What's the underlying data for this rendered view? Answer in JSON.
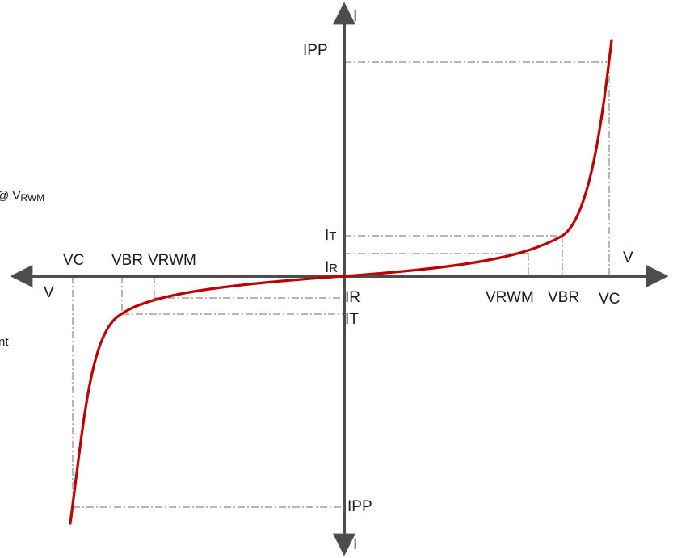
{
  "colors": {
    "curve": "#c00000",
    "axis": "#4d4d4d",
    "guide": "#6e6e6e",
    "text": "#1a1a1a"
  },
  "axes": {
    "x_label_right": "V",
    "x_label_left": "V",
    "y_label_top": "I",
    "y_label_bottom": "I"
  },
  "labels": {
    "ipp_top": "IPP",
    "ipp_bottom": "IPP",
    "it_pos": {
      "main": "I",
      "sub": "T"
    },
    "ir_pos": {
      "main": "I",
      "sub": "R"
    },
    "ir_neg": "IR",
    "it_neg": "IT",
    "vrwm_pos": "VRWM",
    "vbr_pos": "VBR",
    "vc_pos": "VC",
    "vc_neg": "VC",
    "vbr_neg": "VBR",
    "vrwm_neg": "VRWM"
  },
  "cropped_legend": {
    "line1": {
      "main": "@ V",
      "sub": "RWM"
    },
    "line2": "nt"
  }
}
